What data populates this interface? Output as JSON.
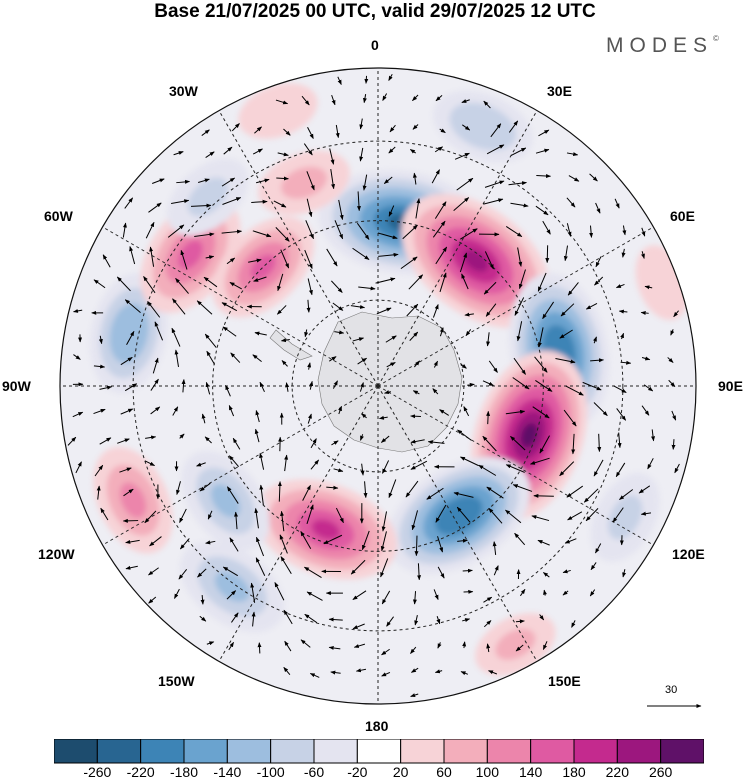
{
  "title": "Base 21/07/2025 00 UTC, valid 29/07/2025 12 UTC",
  "brand": "MODES",
  "brand_mark": "©",
  "longitude_labels": {
    "lon_0": "0",
    "lon_30e": "30E",
    "lon_60e": "60E",
    "lon_90e": "90E",
    "lon_120e": "120E",
    "lon_150e": "150E",
    "lon_180": "180",
    "lon_150w": "150W",
    "lon_120w": "120W",
    "lon_90w": "90W",
    "lon_60w": "60W",
    "lon_30w": "30W"
  },
  "reference_vector": "30",
  "colorbar": {
    "colors": [
      "#1d4c6e",
      "#286591",
      "#3d84b6",
      "#6aa3cf",
      "#9dbedf",
      "#c7d2e6",
      "#e4e4f0",
      "#ffffff",
      "#f7d3d7",
      "#f3aebb",
      "#ec85ab",
      "#df5aa2",
      "#c42a8e",
      "#9c177e",
      "#5f1168"
    ],
    "labels": [
      "-260",
      "-220",
      "-180",
      "-140",
      "-100",
      "-60",
      "-20",
      "20",
      "60",
      "100",
      "140",
      "180",
      "220",
      "260"
    ]
  },
  "anomaly_centers": [
    {
      "lon": 8,
      "colat": 0.52,
      "value": -240,
      "sense": "cyclonic"
    },
    {
      "lon": 38,
      "colat": 0.5,
      "value": 250,
      "sense": "anticyclonic"
    },
    {
      "lon": 79,
      "colat": 0.58,
      "value": -220,
      "sense": "cyclonic"
    },
    {
      "lon": 108,
      "colat": 0.5,
      "value": 260,
      "sense": "anticyclonic"
    },
    {
      "lon": 148,
      "colat": 0.48,
      "value": -220,
      "sense": "cyclonic"
    },
    {
      "lon": 152,
      "colat": 0.92,
      "value": 60,
      "sense": "anticyclonic"
    },
    {
      "lon": -160,
      "colat": 0.48,
      "value": 200,
      "sense": "anticyclonic"
    },
    {
      "lon": -127,
      "colat": 0.6,
      "value": -120,
      "sense": "cyclonic"
    },
    {
      "lon": -144,
      "colat": 0.78,
      "value": -130,
      "sense": "cyclonic"
    },
    {
      "lon": -115,
      "colat": 0.85,
      "value": 120,
      "sense": "anticyclonic"
    },
    {
      "lon": -78,
      "colat": 0.8,
      "value": -140,
      "sense": "cyclonic"
    },
    {
      "lon": -55,
      "colat": 0.72,
      "value": 160,
      "sense": "anticyclonic"
    },
    {
      "lon": -44,
      "colat": 0.52,
      "value": 140,
      "sense": "anticyclonic"
    },
    {
      "lon": -42,
      "colat": 0.8,
      "value": -80,
      "sense": "cyclonic"
    },
    {
      "lon": -20,
      "colat": 0.68,
      "value": 80,
      "sense": "anticyclonic"
    },
    {
      "lon": 22,
      "colat": 0.88,
      "value": -100,
      "sense": "cyclonic"
    },
    {
      "lon": 70,
      "colat": 0.95,
      "value": 40,
      "sense": "anticyclonic"
    },
    {
      "lon": 118,
      "colat": 0.88,
      "value": -80,
      "sense": "cyclonic"
    },
    {
      "lon": -20,
      "colat": 0.92,
      "value": 50,
      "sense": "anticyclonic"
    }
  ]
}
